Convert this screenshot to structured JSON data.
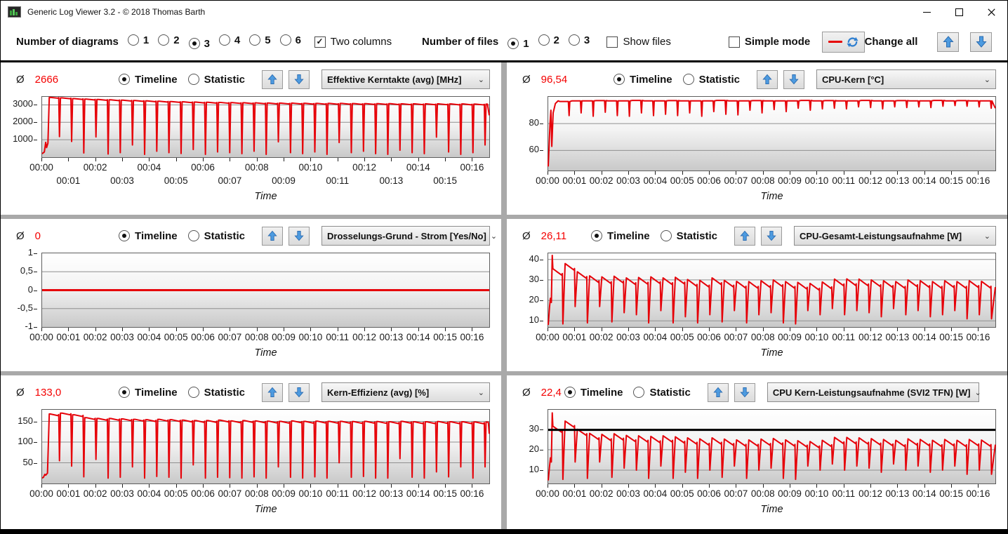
{
  "window": {
    "title": "Generic Log Viewer 3.2 - © 2018 Thomas Barth"
  },
  "toolbar": {
    "diagrams_label": "Number of diagrams",
    "diagram_options": [
      "1",
      "2",
      "3",
      "4",
      "5",
      "6"
    ],
    "diagrams_selected": "3",
    "two_columns_label": "Two columns",
    "two_columns_checked": true,
    "files_label": "Number of files",
    "file_options": [
      "1",
      "2",
      "3"
    ],
    "files_selected": "1",
    "show_files_label": "Show files",
    "show_files_checked": false,
    "simple_mode_label": "Simple mode",
    "simple_mode_checked": false,
    "change_all_label": "Change all"
  },
  "panel_labels": {
    "avg_symbol": "Ø",
    "timeline": "Timeline",
    "statistic": "Statistic"
  },
  "x_axis": {
    "title": "Time",
    "tick_labels": [
      "00:00",
      "00:01",
      "00:02",
      "00:03",
      "00:04",
      "00:05",
      "00:06",
      "00:07",
      "00:08",
      "00:09",
      "00:10",
      "00:11",
      "00:12",
      "00:13",
      "00:14",
      "00:15",
      "00:16"
    ]
  },
  "panels": [
    {
      "avg": "2666",
      "metric": "Effektive Kerntakte (avg) [MHz]"
    },
    {
      "avg": "96,54",
      "metric": "CPU-Kern [°C]"
    },
    {
      "avg": "0",
      "metric": "Drosselungs-Grund - Strom [Yes/No]"
    },
    {
      "avg": "26,11",
      "metric": "CPU-Gesamt-Leistungsaufnahme [W]"
    },
    {
      "avg": "133,0",
      "metric": "Kern-Effizienz (avg) [%]"
    },
    {
      "avg": "22,4",
      "metric": "CPU Kern-Leistungsaufnahme (SVI2 TFN) [W]"
    }
  ],
  "chart_data": [
    {
      "type": "line",
      "title": "Effektive Kerntakte (avg) [MHz]",
      "xlabel": "Time",
      "ylabel": "MHz",
      "style": "plateau",
      "line_color": "#e60008",
      "stroke": 2,
      "x_stagger": true,
      "xlim_seconds": [
        0,
        1000
      ],
      "ylim": [
        0,
        3460
      ],
      "yticks": {
        "values": [
          3000,
          2000,
          1000
        ],
        "labels": [
          "3000",
          "2000",
          "1000"
        ]
      },
      "cycle_start": 16,
      "decay": 45,
      "intro": [
        [
          0,
          200
        ],
        [
          5,
          300
        ],
        [
          8,
          850
        ],
        [
          10,
          550
        ],
        [
          13,
          800
        ],
        [
          16,
          3430
        ]
      ],
      "outro": [
        [
          996,
          3040
        ],
        [
          1000,
          2400
        ]
      ],
      "series": {
        "plateaus": [
          3430,
          3400,
          3360,
          3330,
          3310,
          3290,
          3270,
          3250,
          3230,
          3210,
          3190,
          3175,
          3160,
          3150,
          3140,
          3130,
          3120,
          3110,
          3105,
          3100,
          3095,
          3090,
          3085,
          3080,
          3080,
          3075,
          3070,
          3070,
          3065,
          3060,
          3060,
          3055,
          3055,
          3050,
          3050,
          3045
        ],
        "dips": [
          1180,
          900,
          240,
          1160,
          180,
          260,
          700,
          160,
          340,
          260,
          210,
          440,
          160,
          300,
          260,
          200,
          340,
          160,
          880,
          260,
          200,
          300,
          160,
          840,
          260,
          340,
          200,
          160,
          400,
          260,
          200,
          1150,
          300,
          160,
          260,
          700
        ]
      }
    },
    {
      "type": "line",
      "title": "CPU-Kern [°C]",
      "xlabel": "Time",
      "ylabel": "°C",
      "style": "temp",
      "line_color": "#e60008",
      "stroke": 2,
      "x_stagger": false,
      "xlim_seconds": [
        0,
        1000
      ],
      "ylim": [
        45,
        100
      ],
      "yticks": {
        "values": [
          80,
          60
        ],
        "labels": [
          "80",
          "60"
        ]
      },
      "cycle_start": 24,
      "decay": 0,
      "intro": [
        [
          0,
          48
        ],
        [
          4,
          80
        ],
        [
          6,
          90
        ],
        [
          8,
          63
        ],
        [
          11,
          88
        ],
        [
          16,
          95
        ],
        [
          22,
          97
        ]
      ],
      "outro": [
        [
          1000,
          91.5
        ]
      ],
      "series": {
        "plateaus": [
          96.5,
          97,
          97,
          97.2,
          97,
          97,
          97.3,
          97,
          97,
          97.2,
          97,
          97,
          97,
          97.3,
          97,
          97,
          97.2,
          97,
          97,
          97,
          97.3,
          97,
          97.2,
          97,
          97,
          97.3,
          97,
          97,
          97.2,
          97,
          97,
          97.3,
          97,
          97.2,
          97,
          97
        ],
        "dips": [
          86,
          88,
          85.5,
          88.5,
          86,
          85.5,
          88,
          86,
          87,
          86,
          88,
          85.5,
          89,
          87,
          86.5,
          90,
          88,
          90.5,
          89,
          91.5,
          90,
          91,
          91.5,
          91,
          92.5,
          92,
          91,
          92.5,
          92,
          92.5,
          92,
          93,
          93.5,
          93,
          92.5,
          91.5
        ]
      }
    },
    {
      "type": "line",
      "title": "Drosselungs-Grund - Strom [Yes/No]",
      "xlabel": "Time",
      "ylabel": "Yes/No",
      "style": "flat",
      "flat_value": 0,
      "line_color": "#e60008",
      "stroke": 3,
      "x_stagger": false,
      "xlim_seconds": [
        0,
        1000
      ],
      "ylim": [
        -1,
        1
      ],
      "yticks": {
        "values": [
          1,
          0.5,
          0,
          -0.5,
          -1
        ],
        "labels": [
          "1",
          "0,5",
          "0",
          "-0,5",
          "-1"
        ]
      }
    },
    {
      "type": "line",
      "title": "CPU-Gesamt-Leistungsaufnahme [W]",
      "xlabel": "Time",
      "ylabel": "W",
      "style": "spike",
      "line_color": "#e60008",
      "stroke": 2,
      "x_stagger": false,
      "xlim_seconds": [
        0,
        1000
      ],
      "ylim": [
        7,
        43
      ],
      "yticks": {
        "values": [
          40,
          30,
          20,
          10
        ],
        "labels": [
          "40",
          "30",
          "20",
          "10"
        ]
      },
      "cycle_start": 9,
      "decay": 3.2,
      "intro": [
        [
          0,
          8
        ],
        [
          3,
          17
        ],
        [
          5,
          21
        ],
        [
          7,
          19
        ],
        [
          9,
          42
        ]
      ],
      "outro": [
        [
          1000,
          26.5
        ]
      ],
      "series": {
        "plateaus": [
          35.5,
          38,
          34,
          32,
          31.5,
          31.8,
          31,
          31.2,
          31.5,
          31,
          31.3,
          30.2,
          29.8,
          31,
          29.8,
          29.3,
          29.2,
          29.6,
          30,
          29.2,
          28.8,
          28.3,
          29,
          30.4,
          30.5,
          30.4,
          30,
          29.6,
          29.2,
          30,
          29.6,
          29.2,
          29.6,
          29.2,
          29.6,
          29.3
        ],
        "dips": [
          8.5,
          17,
          9,
          17,
          9.5,
          14,
          13,
          9,
          15,
          9,
          12,
          9,
          13,
          9.5,
          15,
          9,
          13,
          14,
          9,
          8.5,
          15,
          13,
          16,
          13,
          15,
          14,
          12,
          16,
          13,
          15,
          12,
          13,
          15,
          11,
          13,
          11
        ]
      }
    },
    {
      "type": "line",
      "title": "Kern-Effizienz (avg) [%]",
      "xlabel": "Time",
      "ylabel": "%",
      "style": "plateau",
      "line_color": "#e60008",
      "stroke": 2,
      "x_stagger": false,
      "xlim_seconds": [
        0,
        1000
      ],
      "ylim": [
        0,
        178
      ],
      "yticks": {
        "values": [
          150,
          100,
          50
        ],
        "labels": [
          "150",
          "100",
          "50"
        ]
      },
      "cycle_start": 16,
      "decay": 4,
      "intro": [
        [
          0,
          13
        ],
        [
          3,
          15
        ],
        [
          6,
          22
        ],
        [
          8,
          20
        ],
        [
          12,
          25
        ],
        [
          16,
          168
        ]
      ],
      "outro": [
        [
          998,
          148
        ],
        [
          1000,
          120
        ]
      ],
      "series": {
        "plateaus": [
          168,
          170,
          166,
          159,
          157,
          157,
          156,
          155,
          154,
          155,
          154,
          153,
          152,
          152,
          153,
          151,
          152,
          151,
          150.5,
          150,
          151,
          150,
          150.5,
          150,
          150,
          149.5,
          150,
          149.5,
          149,
          150,
          149,
          149,
          149.5,
          149,
          149,
          148.5
        ],
        "dips": [
          55,
          42,
          16,
          58,
          13,
          15,
          40,
          13,
          17,
          15,
          13,
          45,
          13,
          15,
          14,
          13,
          16,
          13,
          40,
          15,
          13,
          16,
          13,
          50,
          15,
          17,
          13,
          13,
          60,
          15,
          13,
          28,
          16,
          40,
          13,
          40
        ]
      }
    },
    {
      "type": "line",
      "title": "CPU Kern-Leistungsaufnahme (SVI2 TFN) [W]",
      "xlabel": "Time",
      "ylabel": "W",
      "style": "spike",
      "line_color": "#e60008",
      "stroke": 2,
      "x_stagger": false,
      "xlim_seconds": [
        0,
        1000
      ],
      "ylim": [
        3.5,
        39.5
      ],
      "yticks": {
        "values": [
          30,
          20,
          10
        ],
        "labels": [
          "30",
          "20",
          "10"
        ]
      },
      "limit_line": 29.7,
      "limit_color": "#000000",
      "cycle_start": 9,
      "decay": 3,
      "intro": [
        [
          0,
          5
        ],
        [
          3,
          12
        ],
        [
          5,
          16
        ],
        [
          7,
          14
        ],
        [
          9,
          38
        ]
      ],
      "outro": [
        [
          1000,
          22.5
        ]
      ],
      "series": {
        "plateaus": [
          31.5,
          34,
          30,
          28,
          27.5,
          27.8,
          27,
          26.8,
          26.5,
          26.8,
          26.3,
          25.8,
          25.3,
          25.8,
          25.2,
          24.8,
          24.8,
          25.2,
          25.5,
          24.8,
          24.4,
          24,
          24.6,
          26,
          26,
          25.8,
          25.4,
          25,
          24.6,
          25.3,
          25,
          24.6,
          25,
          24.6,
          25,
          24.7
        ],
        "dips": [
          5.5,
          14,
          6,
          14,
          6.5,
          11,
          10,
          6,
          12,
          6,
          9,
          6,
          10,
          6.5,
          12,
          6,
          10,
          11,
          6,
          5.5,
          12,
          10,
          13,
          10,
          12,
          11,
          9,
          13,
          10,
          12,
          9,
          10,
          12,
          8,
          10,
          8
        ]
      }
    }
  ]
}
